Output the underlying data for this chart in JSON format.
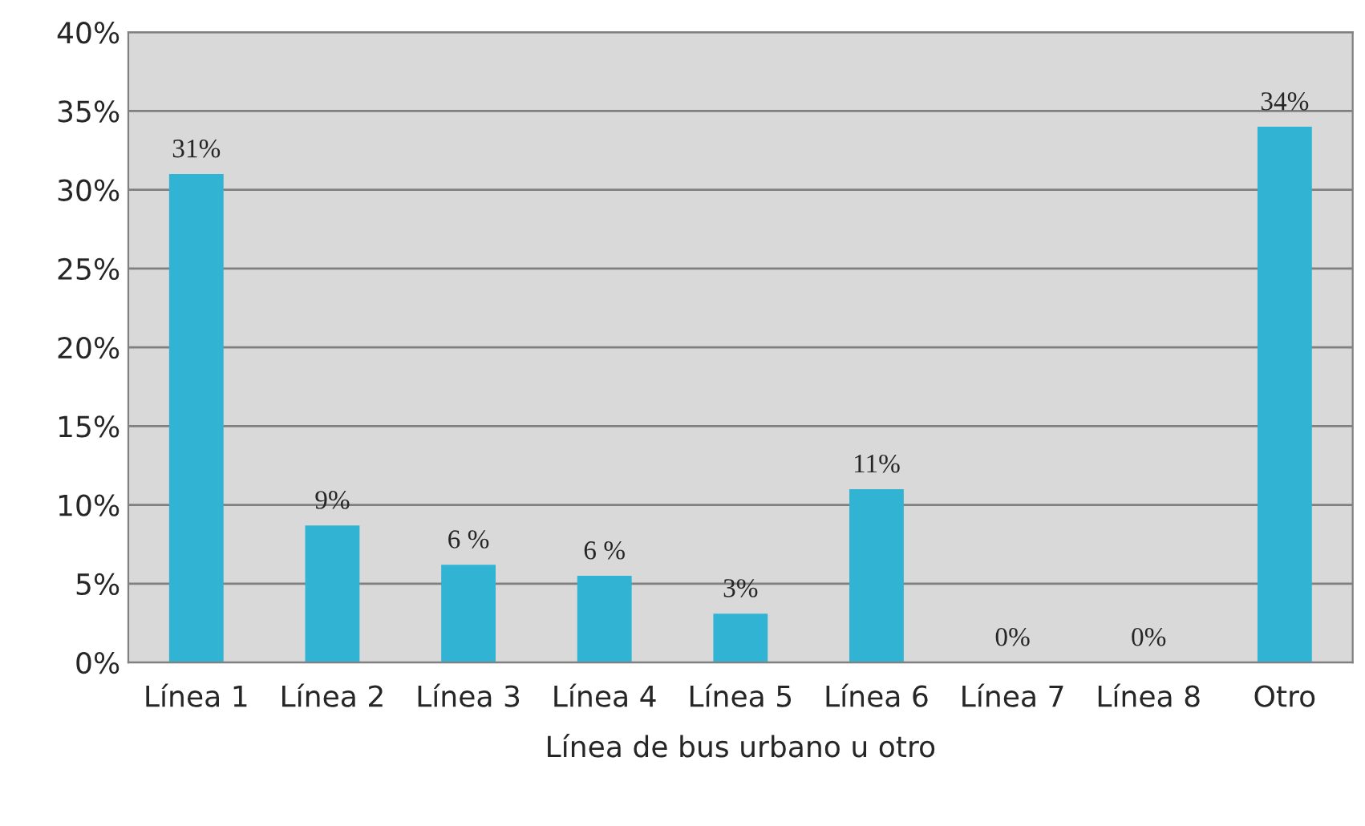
{
  "chart_data": {
    "type": "bar",
    "xlabel": "Línea de bus urbano u otro",
    "categories": [
      "Línea 1",
      "Línea 2",
      "Línea 3",
      "Línea 4",
      "Línea 5",
      "Línea 6",
      "Línea 7",
      "Línea 8",
      "Otro"
    ],
    "values": [
      31,
      8.7,
      6.2,
      5.5,
      3.1,
      11,
      0,
      0,
      34
    ],
    "value_labels": [
      "31%",
      "9%",
      "6 %",
      "6 %",
      "3%",
      "11%",
      "0%",
      "0%",
      "34%"
    ],
    "color": "#31b4d4",
    "ylim": [
      0,
      40
    ],
    "yticks": [
      {
        "value": 0,
        "label": "0%"
      },
      {
        "value": 5,
        "label": "5%"
      },
      {
        "value": 10,
        "label": "10%"
      },
      {
        "value": 15,
        "label": "15%"
      },
      {
        "value": 20,
        "label": "20%"
      },
      {
        "value": 25,
        "label": "25%"
      },
      {
        "value": 30,
        "label": "30%"
      },
      {
        "value": 35,
        "label": "35%"
      },
      {
        "value": 40,
        "label": "40%"
      }
    ],
    "grid": "y"
  }
}
